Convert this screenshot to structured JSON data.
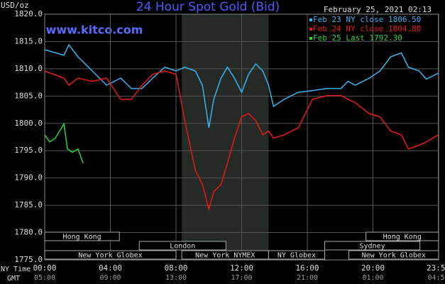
{
  "chart_data": {
    "type": "line",
    "title": "24 Hour Spot Gold (Bid)",
    "timestamp": "February 25, 2021 02:13",
    "watermark": "www.kitco.com",
    "y_unit": "USD/oz",
    "x_row_labels": [
      "NY Time",
      "GMT"
    ],
    "ylim": [
      1775,
      1820
    ],
    "yticks": [
      {
        "value": 1775,
        "label": "1775.0"
      },
      {
        "value": 1780,
        "label": "1780.0"
      },
      {
        "value": 1785,
        "label": "1785.0"
      },
      {
        "value": 1790,
        "label": "1790.0"
      },
      {
        "value": 1795,
        "label": "1795.0"
      },
      {
        "value": 1800,
        "label": "1800.0"
      },
      {
        "value": 1805,
        "label": "1805.0"
      },
      {
        "value": 1810,
        "label": "1810.0"
      },
      {
        "value": 1815,
        "label": "1815.0"
      },
      {
        "value": 1820,
        "label": "1820.0"
      }
    ],
    "xlim": [
      0,
      24
    ],
    "xticks": [
      {
        "value": 0,
        "label": "00:00"
      },
      {
        "value": 4,
        "label": "04:00"
      },
      {
        "value": 8,
        "label": "08:00"
      },
      {
        "value": 12,
        "label": "12:00"
      },
      {
        "value": 16,
        "label": "16:00"
      },
      {
        "value": 20,
        "label": "20:00"
      },
      {
        "value": 23.98,
        "label": "23:59"
      }
    ],
    "gmt_labels": [
      "05:00",
      "09:00",
      "13:00",
      "17:00",
      "21:00",
      "01:00",
      "04:59"
    ],
    "grid": true,
    "highlight": [
      8.35,
      13.64
    ],
    "sessions": [
      [
        {
          "label": "Hong Kong",
          "start": 0,
          "end": 4.55
        },
        {
          "label": "Hong Kong",
          "start": 19.57,
          "end": 24
        }
      ],
      [
        {
          "label": "London",
          "start": 5.76,
          "end": 11.04
        },
        {
          "label": "Sydney",
          "start": 17.06,
          "end": 22.86
        }
      ],
      [
        {
          "label": "New York Globex",
          "start": 0,
          "end": 8.0
        },
        {
          "label": "New York NYMEX",
          "start": 8.35,
          "end": 13.64
        },
        {
          "label": "NY Globex",
          "start": 13.64,
          "end": 17.06
        },
        {
          "label": "New York Globex",
          "start": 18.53,
          "end": 24
        }
      ]
    ],
    "series": [
      {
        "name": "Feb 23 NY close 1806.50",
        "color": "#3ab4ee",
        "x": [
          0,
          1.17,
          1.47,
          2.03,
          2.9,
          3.77,
          4.63,
          5.28,
          5.93,
          6.58,
          7.32,
          8.01,
          8.53,
          9.18,
          9.61,
          10.0,
          10.3,
          10.74,
          11.13,
          11.56,
          12.0,
          12.42,
          12.86,
          13.29,
          13.64,
          13.94,
          14.59,
          15.45,
          16.32,
          17.19,
          18.05,
          18.48,
          18.92,
          19.78,
          20.43,
          21.08,
          21.73,
          22.16,
          22.81,
          23.25,
          23.98
        ],
        "values": [
          1813.5,
          1812.5,
          1814.4,
          1812.2,
          1809.6,
          1807.0,
          1808.3,
          1806.4,
          1806.4,
          1808.3,
          1810.3,
          1809.6,
          1810.3,
          1809.6,
          1807.0,
          1799.2,
          1804.4,
          1808.3,
          1810.3,
          1808.3,
          1805.7,
          1809.0,
          1810.9,
          1809.6,
          1807.0,
          1803.1,
          1804.4,
          1805.7,
          1806.0,
          1806.4,
          1806.4,
          1807.7,
          1807.0,
          1808.3,
          1809.6,
          1812.2,
          1812.9,
          1810.3,
          1809.6,
          1808.1,
          1809.2
        ]
      },
      {
        "name": "Feb 24 NY close 1804.80",
        "color": "#e8191a",
        "x": [
          0,
          1.17,
          1.47,
          2.03,
          2.9,
          3.77,
          4.63,
          5.28,
          5.93,
          6.58,
          7.32,
          8.01,
          8.53,
          9.18,
          9.61,
          10.0,
          10.3,
          10.74,
          11.13,
          11.56,
          12.0,
          12.42,
          12.86,
          13.29,
          13.64,
          13.94,
          14.59,
          15.45,
          16.32,
          17.19,
          18.05,
          18.48,
          18.92,
          19.78,
          20.43,
          21.08,
          21.73,
          22.16,
          22.81,
          23.25,
          23.98
        ],
        "values": [
          1809.6,
          1808.3,
          1807.0,
          1808.3,
          1807.7,
          1808.3,
          1804.4,
          1804.4,
          1807.0,
          1809.0,
          1809.6,
          1809.0,
          1800.5,
          1791.4,
          1788.8,
          1784.3,
          1787.5,
          1788.8,
          1792.7,
          1797.3,
          1801.2,
          1801.8,
          1800.5,
          1797.9,
          1798.6,
          1797.3,
          1797.9,
          1799.2,
          1804.4,
          1805.1,
          1805.1,
          1804.4,
          1803.8,
          1801.8,
          1801.2,
          1798.6,
          1797.9,
          1795.3,
          1796.0,
          1796.6,
          1797.9
        ]
      },
      {
        "name": "Feb 25 Last 1792.30",
        "color": "#2ed43a",
        "x": [
          0,
          0.3,
          0.65,
          1.17,
          1.39,
          1.69,
          2.03,
          2.34
        ],
        "values": [
          1797.9,
          1796.6,
          1797.3,
          1799.9,
          1795.3,
          1794.7,
          1795.3,
          1792.7
        ]
      }
    ]
  }
}
